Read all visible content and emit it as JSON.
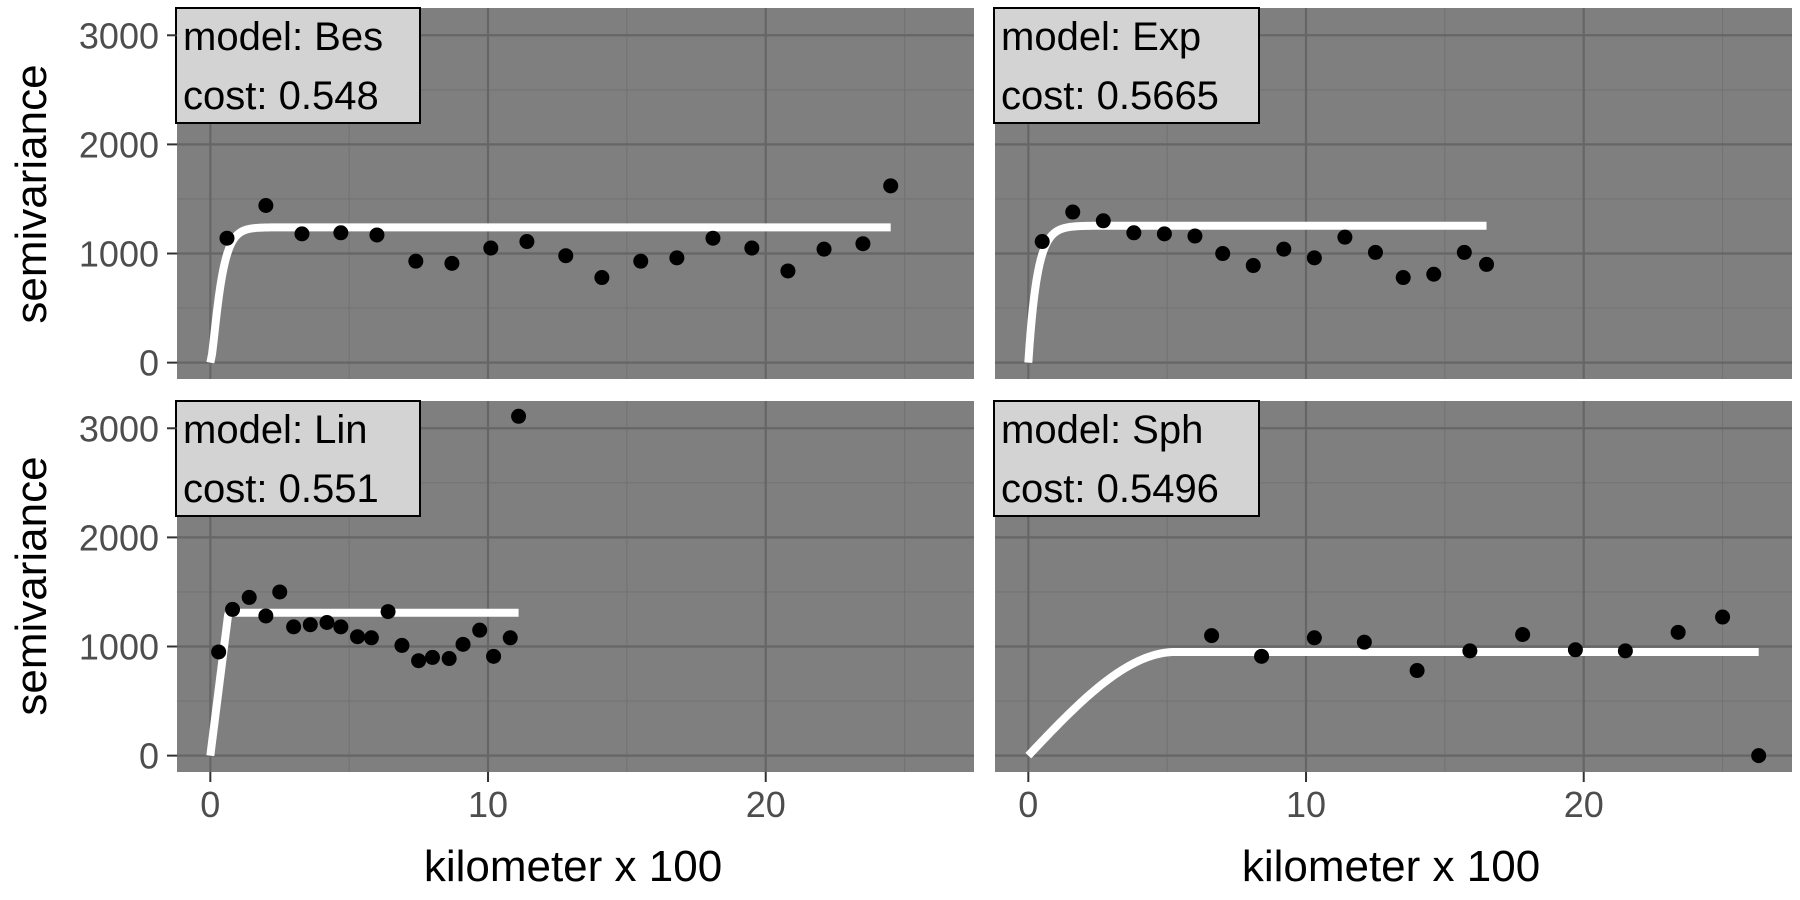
{
  "chart_data": {
    "type": "scatter",
    "layout": "2x2 facets",
    "ylabel": "semivariance",
    "xlabel": "kilometer x 100",
    "xlim": [
      -1.2,
      27.5
    ],
    "ylim": [
      -150,
      3250
    ],
    "x_ticks": [
      0,
      10,
      20
    ],
    "y_ticks": [
      0,
      1000,
      2000,
      3000
    ],
    "x_tick_labels": [
      "0",
      "10",
      "20"
    ],
    "y_tick_labels": [
      "0",
      "1000",
      "2000",
      "3000"
    ],
    "grid": true,
    "panels": [
      {
        "model_label": "model: Bes",
        "cost_label": "cost: 0.548",
        "fit_type": "bessel",
        "fit": {
          "nugget": 0,
          "sill": 1240,
          "range": 0.25,
          "max_x": 24.5
        },
        "points": [
          [
            0.6,
            1140
          ],
          [
            2.0,
            1440
          ],
          [
            3.3,
            1180
          ],
          [
            4.7,
            1190
          ],
          [
            6.0,
            1170
          ],
          [
            7.4,
            930
          ],
          [
            8.7,
            910
          ],
          [
            10.1,
            1050
          ],
          [
            11.4,
            1110
          ],
          [
            12.8,
            980
          ],
          [
            14.1,
            780
          ],
          [
            15.5,
            930
          ],
          [
            16.8,
            960
          ],
          [
            18.1,
            1140
          ],
          [
            19.5,
            1050
          ],
          [
            20.8,
            840
          ],
          [
            22.1,
            1040
          ],
          [
            23.5,
            1090
          ],
          [
            24.5,
            1620
          ]
        ]
      },
      {
        "model_label": "model: Exp",
        "cost_label": "cost: 0.5665",
        "fit_type": "exponential",
        "fit": {
          "nugget": 0,
          "sill": 1255,
          "range": 0.32,
          "max_x": 16.5
        },
        "points": [
          [
            0.5,
            1110
          ],
          [
            1.6,
            1380
          ],
          [
            2.7,
            1300
          ],
          [
            3.8,
            1190
          ],
          [
            4.9,
            1180
          ],
          [
            6.0,
            1160
          ],
          [
            7.0,
            1000
          ],
          [
            8.1,
            890
          ],
          [
            9.2,
            1040
          ],
          [
            10.3,
            960
          ],
          [
            11.4,
            1150
          ],
          [
            12.5,
            1010
          ],
          [
            13.5,
            780
          ],
          [
            14.6,
            810
          ],
          [
            15.7,
            1010
          ],
          [
            16.5,
            900
          ]
        ]
      },
      {
        "model_label": "model: Lin",
        "cost_label": "cost: 0.551",
        "fit_type": "linear",
        "fit": {
          "nugget": 0,
          "sill": 1310,
          "range": 0.65,
          "max_x": 11.1
        },
        "points": [
          [
            0.3,
            950
          ],
          [
            0.8,
            1340
          ],
          [
            1.4,
            1450
          ],
          [
            2.0,
            1280
          ],
          [
            2.5,
            1500
          ],
          [
            3.0,
            1180
          ],
          [
            3.6,
            1200
          ],
          [
            4.2,
            1220
          ],
          [
            4.7,
            1180
          ],
          [
            5.3,
            1090
          ],
          [
            5.8,
            1080
          ],
          [
            6.4,
            1320
          ],
          [
            6.9,
            1010
          ],
          [
            7.5,
            870
          ],
          [
            8.0,
            900
          ],
          [
            8.6,
            890
          ],
          [
            9.1,
            1020
          ],
          [
            9.7,
            1150
          ],
          [
            10.2,
            910
          ],
          [
            10.8,
            1080
          ],
          [
            11.1,
            3110
          ]
        ]
      },
      {
        "model_label": "model: Sph",
        "cost_label": "cost: 0.5496",
        "fit_type": "spherical",
        "fit": {
          "nugget": 0,
          "sill": 950,
          "range": 5.3,
          "max_x": 26.3
        },
        "points": [
          [
            6.6,
            1100
          ],
          [
            8.4,
            910
          ],
          [
            10.3,
            1080
          ],
          [
            12.1,
            1040
          ],
          [
            14.0,
            780
          ],
          [
            15.9,
            960
          ],
          [
            17.8,
            1110
          ],
          [
            19.7,
            970
          ],
          [
            21.5,
            960
          ],
          [
            23.4,
            1130
          ],
          [
            25.0,
            1270
          ],
          [
            26.3,
            0
          ]
        ]
      }
    ]
  }
}
